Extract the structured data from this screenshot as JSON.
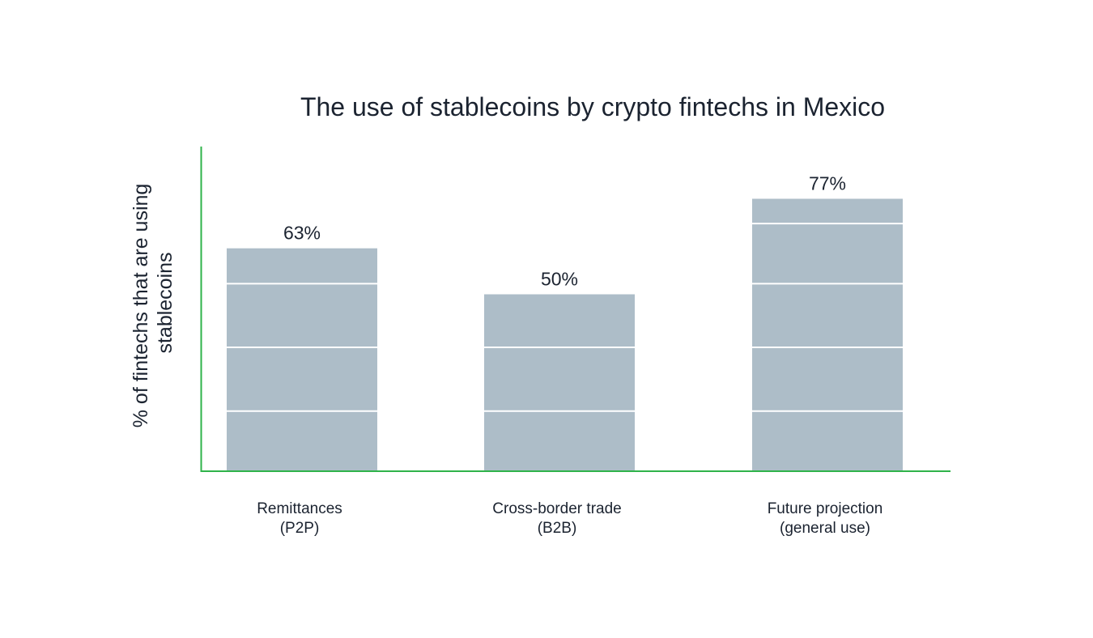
{
  "chart_data": {
    "type": "bar",
    "title": "The use of stablecoins by crypto fintechs in Mexico",
    "ylabel_lines": [
      "% of fintechs that are using",
      "stablecoins"
    ],
    "xlabel": "",
    "categories": [
      [
        "Remittances",
        "(P2P)"
      ],
      [
        "Cross-border trade",
        "(B2B)"
      ],
      [
        "Future projection",
        "(general use)"
      ]
    ],
    "values": [
      63,
      50,
      77
    ],
    "value_labels": [
      "63%",
      "50%",
      "77%"
    ],
    "ylim": [
      0,
      90
    ],
    "gridlines": [
      17,
      35,
      53,
      70
    ],
    "grid": true,
    "colors": {
      "bar": "#adbdc8",
      "axis": "#2fb34a",
      "gridline": "#ffffff"
    }
  }
}
